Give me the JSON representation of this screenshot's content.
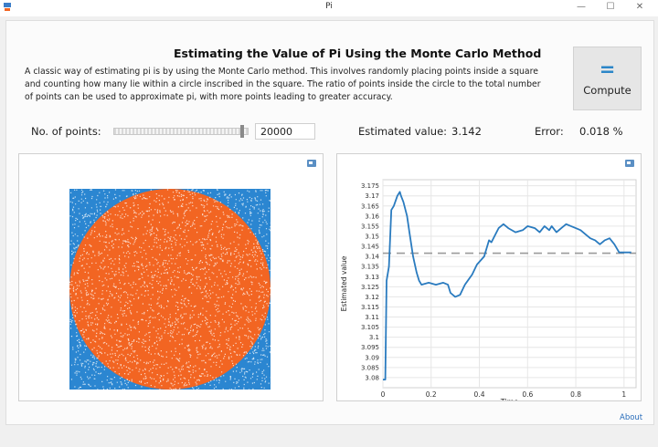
{
  "window": {
    "title": "Pi",
    "minimize": "—",
    "maximize": "☐",
    "close": "✕"
  },
  "header": {
    "title": "Estimating the Value of Pi Using the Monte Carlo Method",
    "description": "A classic way of estimating pi is by using the Monte Carlo method. This involves randomly placing points inside a square and counting how many lie within a circle inscribed in the square. The ratio of points inside the circle to the total number of points can be used to approximate pi, with more points leading to greater accuracy."
  },
  "compute": {
    "icon": "=",
    "label": "Compute"
  },
  "controls": {
    "points_label": "No. of points:",
    "points_value": "20000",
    "slider_fraction": 0.98,
    "estimated_label": "Estimated value:",
    "estimated_value": "3.142",
    "error_label": "Error:",
    "error_value": "0.018 %"
  },
  "icons": {
    "app": "pi-app-icon",
    "panel_action": "image-export-icon"
  },
  "colors": {
    "inside": "#f26522",
    "outside": "#2b86d1",
    "line": "#2a7bbf",
    "reference": "#9a9a9a",
    "accent": "#2b86c8"
  },
  "scatter": {
    "points": 20000
  },
  "chart_data": {
    "type": "line",
    "title": "",
    "xlabel": "Time",
    "ylabel": "Estimated value",
    "xlim": [
      0,
      1.05
    ],
    "ylim": [
      3.075,
      3.178
    ],
    "xticks": [
      "0",
      "0.2",
      "0.4",
      "0.6",
      "0.8",
      "1"
    ],
    "yticks": [
      "3.08",
      "3.085",
      "3.09",
      "3.095",
      "3.1",
      "3.105",
      "3.11",
      "3.115",
      "3.12",
      "3.125",
      "3.13",
      "3.135",
      "3.14",
      "3.145",
      "3.15",
      "3.155",
      "3.16",
      "3.165",
      "3.17",
      "3.175"
    ],
    "grid": true,
    "reference": {
      "y": 3.14159,
      "style": "dashed"
    },
    "series": [
      {
        "x": [
          0,
          0.01,
          0.015,
          0.025,
          0.035,
          0.045,
          0.06,
          0.07,
          0.075,
          0.085,
          0.1,
          0.11,
          0.125,
          0.14,
          0.15,
          0.16,
          0.19,
          0.22,
          0.25,
          0.27,
          0.28,
          0.3,
          0.32,
          0.34,
          0.37,
          0.39,
          0.42,
          0.44,
          0.45,
          0.48,
          0.5,
          0.52,
          0.55,
          0.58,
          0.6,
          0.63,
          0.65,
          0.67,
          0.69,
          0.7,
          0.72,
          0.74,
          0.76,
          0.78,
          0.8,
          0.82,
          0.84,
          0.86,
          0.88,
          0.9,
          0.92,
          0.94,
          0.96,
          0.98,
          1.0,
          1.03
        ],
        "y": [
          3.079,
          3.079,
          3.128,
          3.135,
          3.163,
          3.165,
          3.17,
          3.172,
          3.17,
          3.167,
          3.16,
          3.152,
          3.14,
          3.132,
          3.128,
          3.126,
          3.127,
          3.126,
          3.127,
          3.126,
          3.122,
          3.12,
          3.121,
          3.126,
          3.131,
          3.136,
          3.14,
          3.148,
          3.147,
          3.154,
          3.156,
          3.154,
          3.152,
          3.153,
          3.155,
          3.154,
          3.152,
          3.155,
          3.153,
          3.155,
          3.152,
          3.154,
          3.156,
          3.155,
          3.154,
          3.153,
          3.151,
          3.149,
          3.148,
          3.146,
          3.148,
          3.149,
          3.146,
          3.142,
          3.142,
          3.142
        ]
      }
    ]
  }
}
